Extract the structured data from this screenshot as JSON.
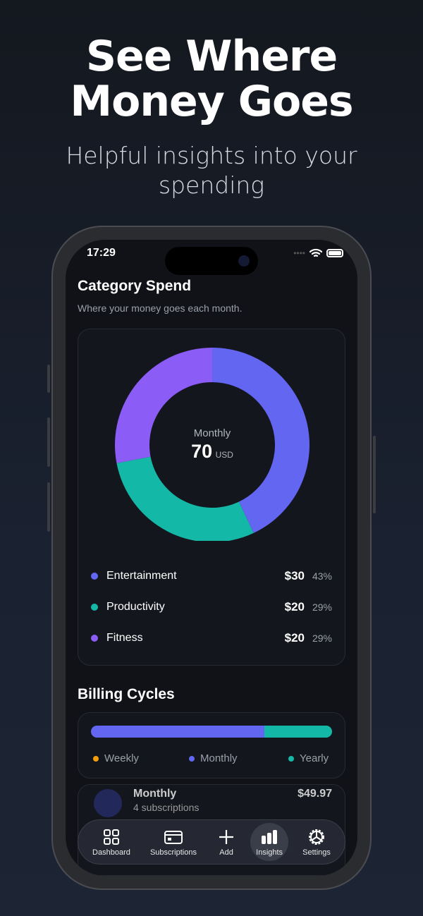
{
  "hero": {
    "title_line1": "See Where",
    "title_line2": "Money Goes",
    "subtitle_line1": "Helpful insights into your",
    "subtitle_line2": "spending"
  },
  "status_bar": {
    "time": "17:29"
  },
  "category": {
    "title": "Category Spend",
    "description": "Where your money goes each month.",
    "center_label": "Monthly",
    "center_value": "70",
    "center_unit": "USD",
    "items": [
      {
        "name": "Entertainment",
        "amount": "$30",
        "percent": "43%",
        "share": 43,
        "color": "#6366f1"
      },
      {
        "name": "Productivity",
        "amount": "$20",
        "percent": "29%",
        "share": 29,
        "color": "#14b8a6"
      },
      {
        "name": "Fitness",
        "amount": "$20",
        "percent": "29%",
        "share": 28,
        "color": "#8b5cf6"
      }
    ]
  },
  "billing": {
    "title": "Billing Cycles",
    "segments": [
      {
        "name": "Monthly",
        "fraction": 0.72,
        "color": "#6366f1"
      },
      {
        "name": "Yearly",
        "fraction": 0.28,
        "color": "#14b8a6"
      }
    ],
    "legend": [
      {
        "label": "Weekly",
        "color": "#f59e0b"
      },
      {
        "label": "Monthly",
        "color": "#6366f1"
      },
      {
        "label": "Yearly",
        "color": "#14b8a6"
      }
    ],
    "row": {
      "label": "Monthly",
      "sub": "4 subscriptions",
      "amount": "$49.97"
    }
  },
  "nav": {
    "items": [
      {
        "label": "Dashboard",
        "icon": "grid"
      },
      {
        "label": "Subscriptions",
        "icon": "card"
      },
      {
        "label": "Add",
        "icon": "plus"
      },
      {
        "label": "Insights",
        "icon": "bar-chart",
        "active": true
      },
      {
        "label": "Settings",
        "icon": "gear"
      }
    ]
  }
}
